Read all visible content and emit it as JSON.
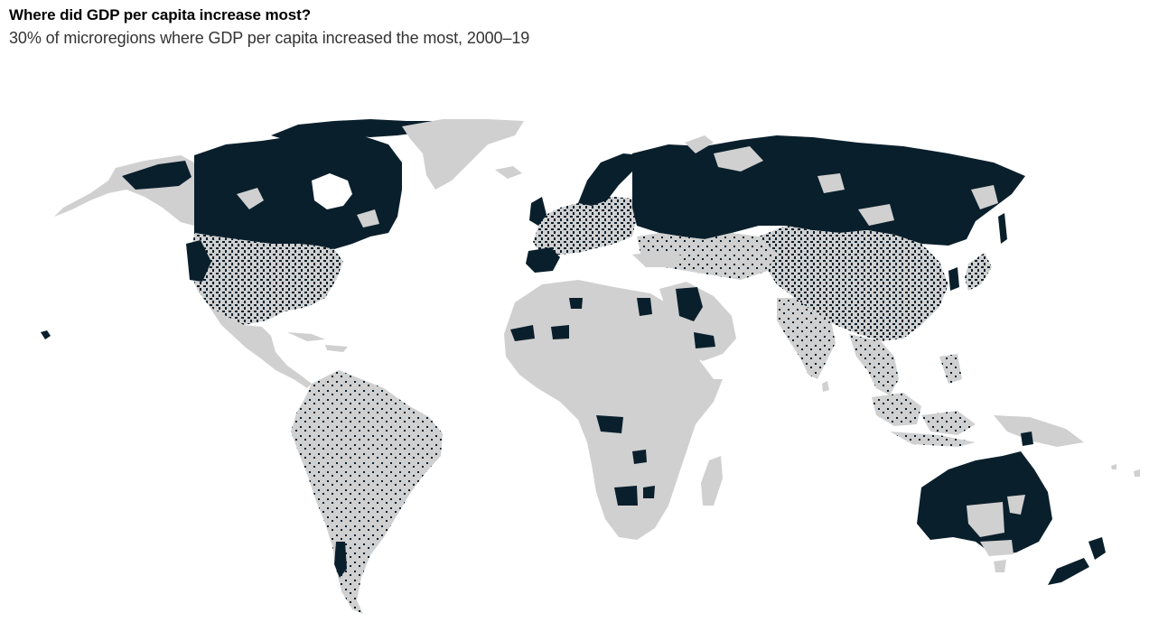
{
  "header": {
    "title": "Where did GDP per capita increase most?",
    "subtitle": "30% of microregions where GDP per capita increased the most, 2000–19"
  },
  "colors": {
    "background": "#ffffff",
    "land_other": "#d0d0d0",
    "top_30_percent": "#0a1f2c"
  },
  "map": {
    "projection": "world",
    "highlight_category": "Top 30% of microregions by GDP per capita increase, 2000–19",
    "regions": [
      {
        "name": "Canada",
        "highlight": "mostly"
      },
      {
        "name": "United States",
        "highlight": "widespread"
      },
      {
        "name": "Greenland",
        "highlight": "none"
      },
      {
        "name": "Russia",
        "highlight": "mostly"
      },
      {
        "name": "Europe",
        "highlight": "widespread"
      },
      {
        "name": "China",
        "highlight": "widespread"
      },
      {
        "name": "Australia",
        "highlight": "mostly"
      },
      {
        "name": "Saudi Arabia",
        "highlight": "partial"
      },
      {
        "name": "South America",
        "highlight": "scattered"
      },
      {
        "name": "Africa",
        "highlight": "scattered"
      },
      {
        "name": "India",
        "highlight": "scattered"
      },
      {
        "name": "Southeast Asia",
        "highlight": "scattered"
      }
    ]
  }
}
